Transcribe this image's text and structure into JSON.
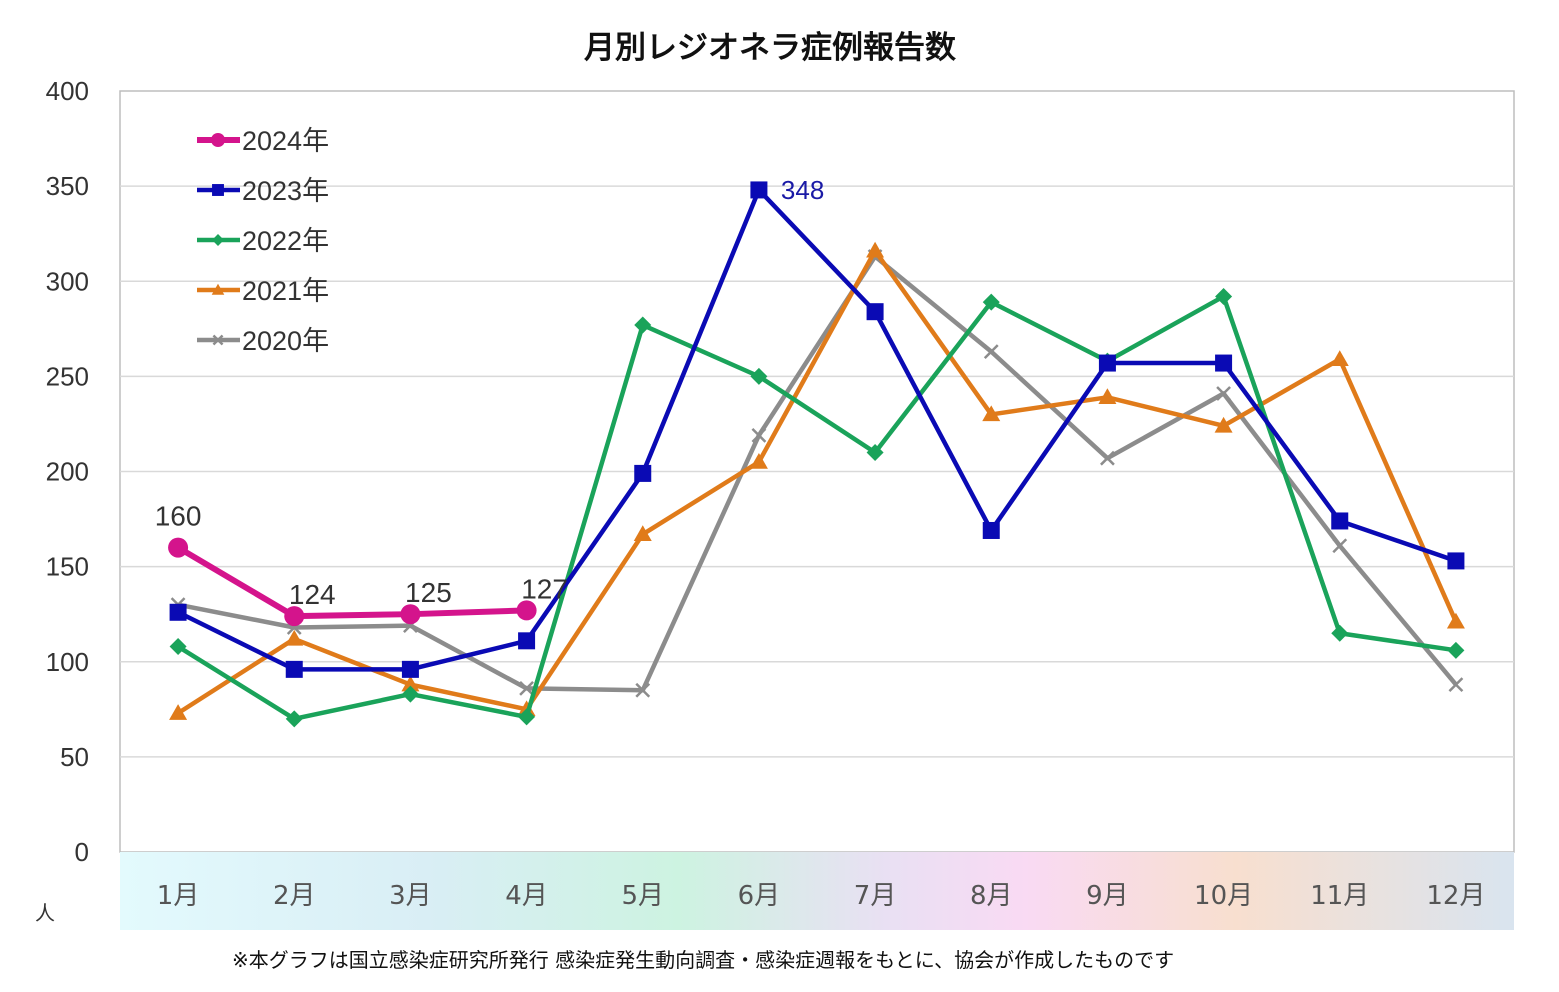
{
  "chart_data": {
    "type": "line",
    "title": "月別レジオネラ症例報告数",
    "ylabel": "人",
    "ylim": [
      0,
      400
    ],
    "yticks": [
      0,
      50,
      100,
      150,
      200,
      250,
      300,
      350,
      400
    ],
    "ytick_labels": [
      "0",
      "50",
      "100",
      "150",
      "200",
      "250",
      "300",
      "350",
      "400"
    ],
    "grid": true,
    "legend_position": "top-left",
    "categories": [
      "1月",
      "2月",
      "3月",
      "4月",
      "5月",
      "6月",
      "7月",
      "8月",
      "9月",
      "10月",
      "11月",
      "12月"
    ],
    "series": [
      {
        "name": "2024年",
        "color": "#d4148c",
        "marker": "circle",
        "values": [
          160,
          124,
          125,
          127,
          null,
          null,
          null,
          null,
          null,
          null,
          null,
          null
        ],
        "labels": [
          "160",
          "124",
          "125",
          "127"
        ]
      },
      {
        "name": "2023年",
        "color": "#0a0ab4",
        "marker": "square",
        "values": [
          126,
          96,
          96,
          111,
          199,
          348,
          284,
          169,
          257,
          257,
          174,
          153
        ],
        "labels": [
          "348"
        ]
      },
      {
        "name": "2022年",
        "color": "#1aa35a",
        "marker": "diamond",
        "values": [
          108,
          70,
          83,
          71,
          277,
          250,
          210,
          289,
          258,
          292,
          115,
          106
        ]
      },
      {
        "name": "2021年",
        "color": "#e07b1a",
        "marker": "triangle",
        "values": [
          73,
          112,
          88,
          75,
          167,
          205,
          316,
          230,
          239,
          224,
          259,
          121
        ]
      },
      {
        "name": "2020年",
        "color": "#8c8c8c",
        "marker": "x",
        "values": [
          130,
          118,
          119,
          86,
          85,
          219,
          313,
          263,
          207,
          241,
          161,
          88
        ]
      }
    ],
    "footnote": "※本グラフは国立感染症研究所発行 感染症発生動向調査・感染症週報をもとに、協会が作成したものです"
  }
}
